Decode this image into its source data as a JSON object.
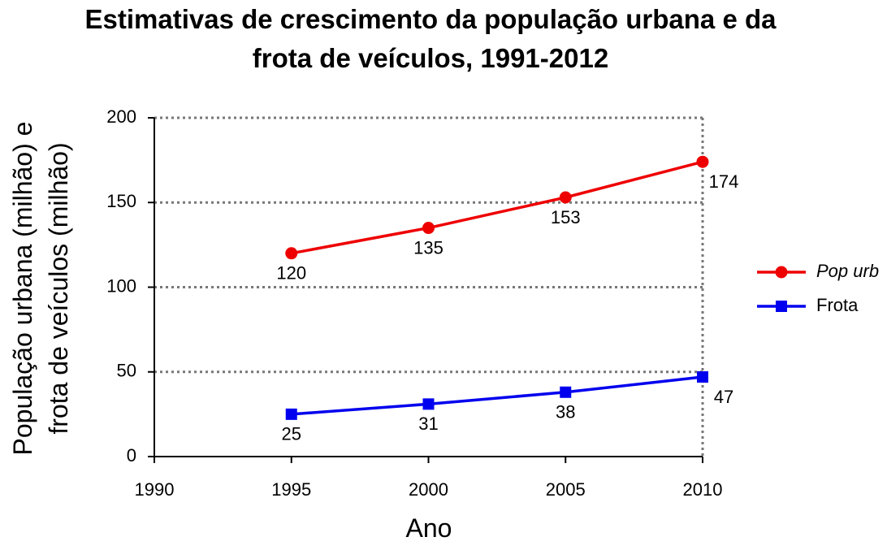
{
  "chart_data": {
    "type": "line",
    "title": "Estimativas de crescimento da população urbana e da frota de veículos, 1991-2012",
    "xlabel": "Ano",
    "ylabel": "População urbana (milhão) e frota de veículos (milhão)",
    "x": [
      1995,
      2000,
      2005,
      2010
    ],
    "series": [
      {
        "name": "Pop urb",
        "color": "#ee0000",
        "marker": "circle",
        "values": [
          120,
          135,
          153,
          174
        ]
      },
      {
        "name": "Frota",
        "color": "#0000ee",
        "marker": "square",
        "values": [
          25,
          31,
          38,
          47
        ]
      }
    ],
    "xlim": [
      1990,
      2010
    ],
    "xticks": [
      1990,
      1995,
      2000,
      2005,
      2010
    ],
    "ylim": [
      0,
      200
    ],
    "yticks": [
      0,
      50,
      100,
      150,
      200
    ],
    "grid": true,
    "legend": "right"
  }
}
